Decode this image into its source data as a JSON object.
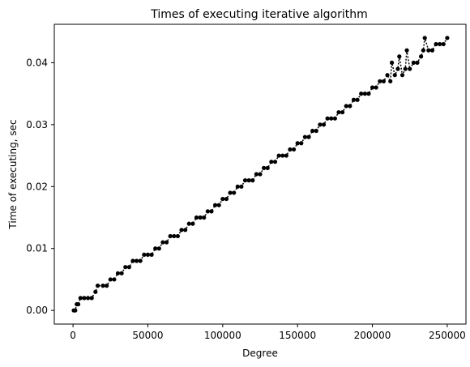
{
  "chart_data": {
    "type": "line",
    "title": "Times of executing iterative algorithm",
    "xlabel": "Degree",
    "ylabel": "Time of executing, sec",
    "xlim": [
      -12500,
      262500
    ],
    "ylim": [
      -0.0022,
      0.0462
    ],
    "x_ticks": [
      0,
      50000,
      100000,
      150000,
      200000,
      250000
    ],
    "x_tick_labels": [
      "0",
      "50000",
      "100000",
      "150000",
      "200000",
      "250000"
    ],
    "y_ticks": [
      0.0,
      0.01,
      0.02,
      0.03,
      0.04
    ],
    "y_tick_labels": [
      "0.00",
      "0.01",
      "0.02",
      "0.03",
      "0.04"
    ],
    "grid": false,
    "legend": "none",
    "series": [
      {
        "color": "#000000",
        "marker": "circle",
        "style": "dotted-line",
        "x": [
          500,
          1500,
          2500,
          3500,
          5000,
          7500,
          10000,
          12500,
          15000,
          16500,
          20000,
          22500,
          25000,
          27500,
          30000,
          32500,
          35000,
          37500,
          40000,
          42500,
          45000,
          47500,
          50000,
          52500,
          55000,
          57500,
          60000,
          62500,
          65000,
          67500,
          70000,
          72500,
          75000,
          77500,
          80000,
          82500,
          85000,
          87500,
          90000,
          92500,
          95000,
          97500,
          100000,
          102500,
          105000,
          107500,
          110000,
          112500,
          115000,
          117500,
          120000,
          122500,
          125000,
          127500,
          130000,
          132500,
          135000,
          137500,
          140000,
          142500,
          145000,
          147500,
          150000,
          152500,
          155000,
          157500,
          160000,
          162500,
          165000,
          167500,
          170000,
          172500,
          175000,
          177500,
          180000,
          182500,
          185000,
          187500,
          190000,
          192500,
          195000,
          197500,
          200000,
          202500,
          205000,
          207500,
          210000,
          212000,
          213000,
          215000,
          217000,
          218000,
          220000,
          222000,
          223000,
          225000,
          227500,
          230000,
          232500,
          234000,
          235000,
          237500,
          240000,
          242500,
          245000,
          247500,
          250000
        ],
        "y": [
          0.0,
          0.0,
          0.001,
          0.001,
          0.002,
          0.002,
          0.002,
          0.002,
          0.003,
          0.004,
          0.004,
          0.004,
          0.005,
          0.005,
          0.006,
          0.006,
          0.007,
          0.007,
          0.008,
          0.008,
          0.008,
          0.009,
          0.009,
          0.009,
          0.01,
          0.01,
          0.011,
          0.011,
          0.012,
          0.012,
          0.012,
          0.013,
          0.013,
          0.014,
          0.014,
          0.015,
          0.015,
          0.015,
          0.016,
          0.016,
          0.017,
          0.017,
          0.018,
          0.018,
          0.019,
          0.019,
          0.02,
          0.02,
          0.021,
          0.021,
          0.021,
          0.022,
          0.022,
          0.023,
          0.023,
          0.024,
          0.024,
          0.025,
          0.025,
          0.025,
          0.026,
          0.026,
          0.027,
          0.027,
          0.028,
          0.028,
          0.029,
          0.029,
          0.03,
          0.03,
          0.031,
          0.031,
          0.031,
          0.032,
          0.032,
          0.033,
          0.033,
          0.034,
          0.034,
          0.035,
          0.035,
          0.035,
          0.036,
          0.036,
          0.037,
          0.037,
          0.038,
          0.037,
          0.04,
          0.038,
          0.039,
          0.041,
          0.038,
          0.039,
          0.042,
          0.039,
          0.04,
          0.04,
          0.041,
          0.042,
          0.044,
          0.042,
          0.042,
          0.043,
          0.043,
          0.043,
          0.044
        ]
      }
    ]
  }
}
